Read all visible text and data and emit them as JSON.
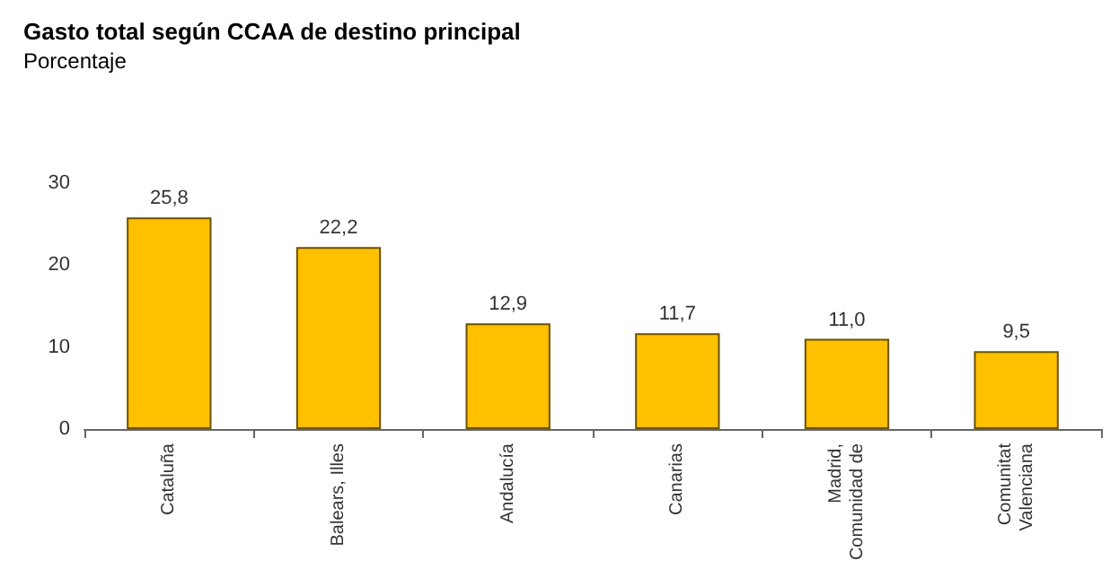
{
  "chart_data": {
    "type": "bar",
    "title": "Gasto total según CCAA de destino principal",
    "subtitle": "Porcentaje",
    "categories": [
      "Cataluña",
      "Balears, Illes",
      "Andalucía",
      "Canarias",
      "Madrid,\nComunidad de",
      "Comunitat\nValenciana"
    ],
    "values": [
      25.8,
      22.2,
      12.9,
      11.7,
      11.0,
      9.5
    ],
    "value_labels": [
      "25,8",
      "22,2",
      "12,9",
      "11,7",
      "11,0",
      "9,5"
    ],
    "color": "#ffc000",
    "ylim": [
      0,
      30
    ],
    "yticks": [
      0,
      10,
      20,
      30
    ],
    "grid": false
  }
}
